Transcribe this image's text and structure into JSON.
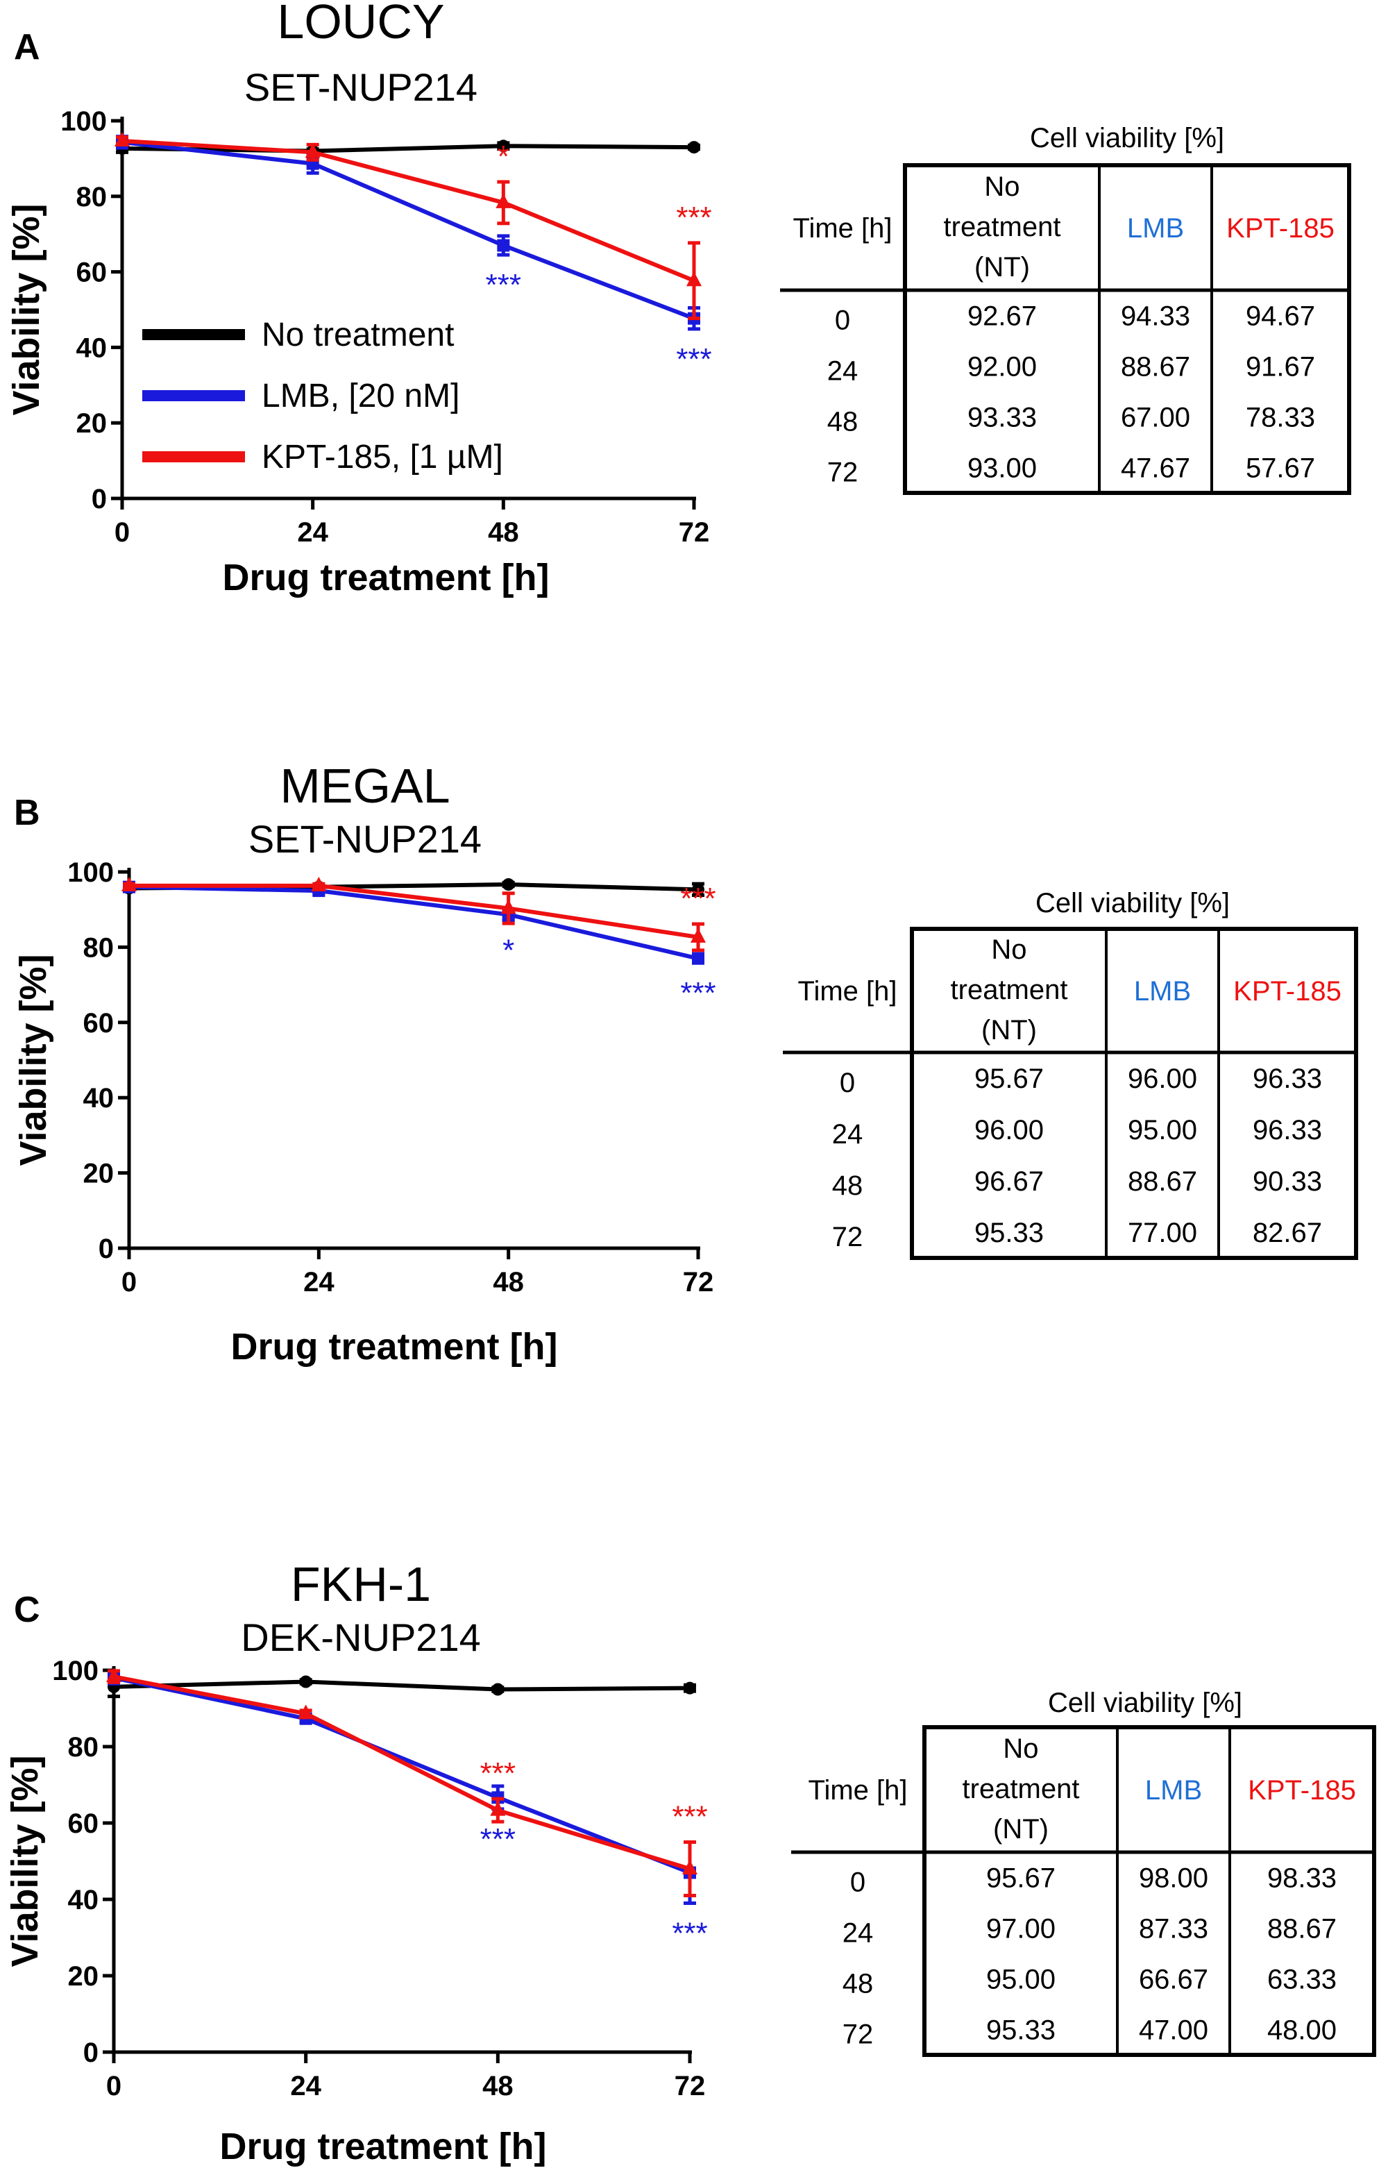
{
  "colors": {
    "nt": "#000000",
    "lmb": "#1a1adc",
    "kpt": "#ee1111",
    "lmb_header": "#1f6fd6",
    "kpt_header": "#ee1111"
  },
  "chart_data": [
    {
      "type": "line",
      "panel_letter": "A",
      "title": "LOUCY",
      "subtitle": "SET-NUP214",
      "xlabel": "Drug treatment [h]",
      "ylabel": "Viability [%]",
      "x": [
        0,
        24,
        48,
        72
      ],
      "x_ticks": [
        "0",
        "24",
        "48",
        "72"
      ],
      "y_ticks": [
        "0",
        "20",
        "40",
        "60",
        "80",
        "100"
      ],
      "ylim": [
        0,
        100
      ],
      "legend": "inside-lower-left",
      "series": [
        {
          "key": "nt",
          "name": "No treatment",
          "marker": "circle",
          "values": [
            92.67,
            92.0,
            93.33,
            93.0
          ],
          "errors": [
            1,
            0.5,
            0.8,
            0.5
          ]
        },
        {
          "key": "lmb",
          "name": "LMB, [20 nM]",
          "marker": "square",
          "values": [
            94.33,
            88.67,
            67.0,
            47.67
          ],
          "errors": [
            1.5,
            2.5,
            2.5,
            2.8
          ]
        },
        {
          "key": "kpt",
          "name": "KPT-185, [1 µM]",
          "marker": "triangle",
          "values": [
            94.67,
            91.67,
            78.33,
            57.67
          ],
          "errors": [
            1,
            2,
            5.5,
            10
          ]
        }
      ],
      "significance": [
        {
          "series": "kpt",
          "x": 48,
          "text": "*",
          "pos": "above"
        },
        {
          "series": "kpt",
          "x": 72,
          "text": "***",
          "pos": "above"
        },
        {
          "series": "lmb",
          "x": 48,
          "text": "***",
          "pos": "below"
        },
        {
          "series": "lmb",
          "x": 72,
          "text": "***",
          "pos": "below"
        }
      ],
      "table": {
        "title": "Cell viability [%]",
        "headers": [
          "Time [h]",
          "No treatment (NT)",
          "LMB",
          "KPT-185"
        ],
        "rows": [
          [
            "0",
            "92.67",
            "94.33",
            "94.67"
          ],
          [
            "24",
            "92.00",
            "88.67",
            "91.67"
          ],
          [
            "48",
            "93.33",
            "67.00",
            "78.33"
          ],
          [
            "72",
            "93.00",
            "47.67",
            "57.67"
          ]
        ]
      }
    },
    {
      "type": "line",
      "panel_letter": "B",
      "title": "MEGAL",
      "subtitle": "SET-NUP214",
      "xlabel": "Drug treatment [h]",
      "ylabel": "Viability [%]",
      "x": [
        0,
        24,
        48,
        72
      ],
      "x_ticks": [
        "0",
        "24",
        "48",
        "72"
      ],
      "y_ticks": [
        "0",
        "20",
        "40",
        "60",
        "80",
        "100"
      ],
      "ylim": [
        0,
        100
      ],
      "series": [
        {
          "key": "nt",
          "name": "No treatment",
          "marker": "circle",
          "values": [
            95.67,
            96.0,
            96.67,
            95.33
          ],
          "errors": [
            0.5,
            0.5,
            0.5,
            1.5
          ]
        },
        {
          "key": "lmb",
          "name": "LMB, [20 nM]",
          "marker": "square",
          "values": [
            96.0,
            95.0,
            88.67,
            77.0
          ],
          "errors": [
            0.5,
            0.8,
            1.5,
            1.2
          ]
        },
        {
          "key": "kpt",
          "name": "KPT-185, [1 µM]",
          "marker": "triangle",
          "values": [
            96.33,
            96.33,
            90.33,
            82.67
          ],
          "errors": [
            0.5,
            0.5,
            4,
            3.5
          ]
        }
      ],
      "significance": [
        {
          "series": "lmb",
          "x": 48,
          "text": "*",
          "pos": "below"
        },
        {
          "series": "kpt",
          "x": 72,
          "text": "***",
          "pos": "above"
        },
        {
          "series": "lmb",
          "x": 72,
          "text": "***",
          "pos": "below"
        }
      ],
      "table": {
        "title": "Cell viability [%]",
        "headers": [
          "Time [h]",
          "No treatment (NT)",
          "LMB",
          "KPT-185"
        ],
        "rows": [
          [
            "0",
            "95.67",
            "96.00",
            "96.33"
          ],
          [
            "24",
            "96.00",
            "95.00",
            "96.33"
          ],
          [
            "48",
            "96.67",
            "88.67",
            "90.33"
          ],
          [
            "72",
            "95.33",
            "77.00",
            "82.67"
          ]
        ]
      }
    },
    {
      "type": "line",
      "panel_letter": "C",
      "title": "FKH-1",
      "subtitle": "DEK-NUP214",
      "xlabel": "Drug treatment [h]",
      "ylabel": "Viability [%]",
      "x": [
        0,
        24,
        48,
        72
      ],
      "x_ticks": [
        "0",
        "24",
        "48",
        "72"
      ],
      "y_ticks": [
        "0",
        "20",
        "40",
        "60",
        "80",
        "100"
      ],
      "ylim": [
        0,
        100
      ],
      "series": [
        {
          "key": "nt",
          "name": "No treatment",
          "marker": "circle",
          "values": [
            95.67,
            97.0,
            95.0,
            95.33
          ],
          "errors": [
            2.5,
            0.5,
            0.5,
            0.8
          ]
        },
        {
          "key": "lmb",
          "name": "LMB, [20 nM]",
          "marker": "square",
          "values": [
            98.0,
            87.33,
            66.67,
            47.0
          ],
          "errors": [
            1.5,
            1,
            3,
            8
          ]
        },
        {
          "key": "kpt",
          "name": "KPT-185, [1 µM]",
          "marker": "triangle",
          "values": [
            98.33,
            88.67,
            63.33,
            48.0
          ],
          "errors": [
            1.5,
            0.8,
            3,
            7
          ]
        }
      ],
      "significance": [
        {
          "series": "kpt",
          "x": 48,
          "text": "***",
          "pos": "above"
        },
        {
          "series": "kpt",
          "x": 72,
          "text": "***",
          "pos": "above"
        },
        {
          "series": "lmb",
          "x": 48,
          "text": "***",
          "pos": "below"
        },
        {
          "series": "lmb",
          "x": 72,
          "text": "***",
          "pos": "below"
        }
      ],
      "table": {
        "title": "Cell viability [%]",
        "headers": [
          "Time [h]",
          "No treatment (NT)",
          "LMB",
          "KPT-185"
        ],
        "rows": [
          [
            "0",
            "95.67",
            "98.00",
            "98.33"
          ],
          [
            "24",
            "97.00",
            "87.33",
            "88.67"
          ],
          [
            "48",
            "95.00",
            "66.67",
            "63.33"
          ],
          [
            "72",
            "95.33",
            "47.00",
            "48.00"
          ]
        ]
      }
    }
  ]
}
